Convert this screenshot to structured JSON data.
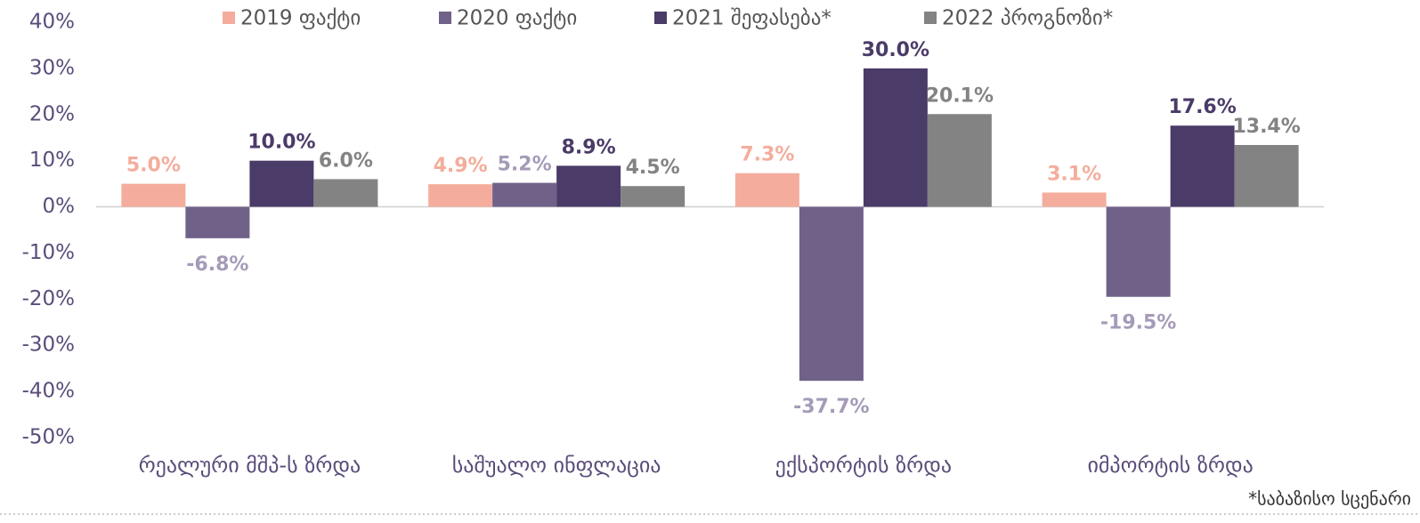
{
  "chart_data": {
    "type": "bar",
    "categories": [
      "რეალური მშპ-ს ზრდა",
      "საშუალო ინფლაცია",
      "ექსპორტის ზრდა",
      "იმპორტის ზრდა"
    ],
    "series": [
      {
        "name": "2019 ფაქტი",
        "color": "#f4ad9c",
        "label_color": "#f4ad9c",
        "values": [
          5.0,
          4.9,
          7.3,
          3.1
        ],
        "value_labels": [
          "5.0%",
          "4.9%",
          "7.3%",
          "3.1%"
        ]
      },
      {
        "name": "2020 ფაქტი",
        "color": "#706189",
        "label_color": "#a59bb8",
        "values": [
          -6.8,
          5.2,
          -37.7,
          -19.5
        ],
        "value_labels": [
          "-6.8%",
          "5.2%",
          "-37.7%",
          "-19.5%"
        ]
      },
      {
        "name": "2021 შეფასება*",
        "color": "#4b3b68",
        "label_color": "#4b3b68",
        "values": [
          10.0,
          8.9,
          30.0,
          17.6
        ],
        "value_labels": [
          "10.0%",
          "8.9%",
          "30.0%",
          "17.6%"
        ]
      },
      {
        "name": "2022 პროგნოზი*",
        "color": "#838383",
        "label_color": "#838383",
        "values": [
          6.0,
          4.5,
          20.1,
          13.4
        ],
        "value_labels": [
          "6.0%",
          "4.5%",
          "20.1%",
          "13.4%"
        ]
      }
    ],
    "ylim": [
      -50,
      40
    ],
    "yticks": [
      {
        "value": -50,
        "label": "-50%"
      },
      {
        "value": -40,
        "label": "-40%"
      },
      {
        "value": -30,
        "label": "-30%"
      },
      {
        "value": -20,
        "label": "-20%"
      },
      {
        "value": -10,
        "label": "-10%"
      },
      {
        "value": 0,
        "label": "0%"
      },
      {
        "value": 10,
        "label": "10%"
      },
      {
        "value": 20,
        "label": "20%"
      },
      {
        "value": 30,
        "label": "30%"
      },
      {
        "value": 40,
        "label": "40%"
      }
    ],
    "grid": false,
    "legend": "top",
    "footnote": "*საბაზისო სცენარი"
  }
}
